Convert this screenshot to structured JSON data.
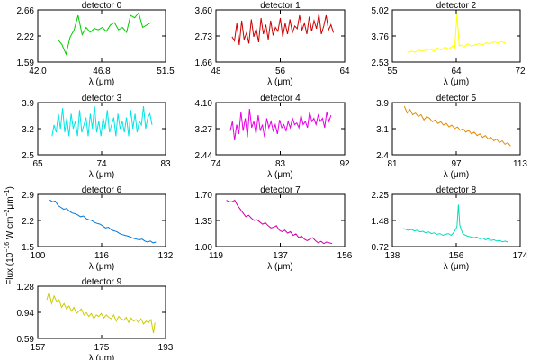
{
  "figure": {
    "ylabel_pre": "Flux (10",
    "ylabel_exp1": "−16",
    "ylabel_mid": " W cm",
    "ylabel_exp2": "−2",
    "ylabel_mid2": "μm",
    "ylabel_exp3": "−1",
    "ylabel_post": ")"
  },
  "chart_data": [
    {
      "type": "line",
      "title": "detector 0",
      "xlabel": "λ (μm)",
      "color": "#00cc00",
      "xlim": [
        42.0,
        51.5
      ],
      "ylim": [
        1.59,
        2.66
      ],
      "xticks": [
        "42.0",
        "46.8",
        "51.5"
      ],
      "yticks": [
        "1.59",
        "2.22",
        "2.66"
      ],
      "series": [
        {
          "x": [
            43.5,
            43.8,
            44.1,
            44.4,
            44.7,
            45.0,
            45.3,
            45.6,
            45.9,
            46.2,
            46.5,
            46.8,
            47.1,
            47.4,
            47.7,
            48.0,
            48.3,
            48.6,
            48.9,
            49.2,
            49.5,
            49.8,
            50.1,
            50.4
          ],
          "y": [
            2.05,
            1.95,
            1.75,
            2.1,
            2.25,
            2.55,
            2.15,
            2.3,
            2.2,
            2.28,
            2.25,
            2.3,
            2.22,
            2.35,
            2.4,
            2.25,
            2.3,
            2.2,
            2.55,
            2.5,
            2.6,
            2.3,
            2.35,
            2.4
          ]
        }
      ]
    },
    {
      "type": "line",
      "title": "detector 1",
      "xlabel": "λ (μm)",
      "color": "#cc0000",
      "xlim": [
        48,
        64
      ],
      "ylim": [
        1.66,
        3.6
      ],
      "xticks": [
        "48",
        "56",
        "64"
      ],
      "yticks": [
        "1.66",
        "2.73",
        "3.60"
      ],
      "series": [
        {
          "x": [
            50.0,
            50.3,
            50.6,
            50.9,
            51.2,
            51.5,
            51.8,
            52.1,
            52.4,
            52.7,
            53.0,
            53.3,
            53.6,
            53.9,
            54.2,
            54.5,
            54.8,
            55.1,
            55.4,
            55.7,
            56.0,
            56.3,
            56.6,
            56.9,
            57.2,
            57.5,
            57.8,
            58.1,
            58.4,
            58.7,
            59.0,
            59.3,
            59.6,
            59.9,
            60.2,
            60.5,
            60.8,
            61.1,
            61.4,
            61.7,
            62.0,
            62.3,
            62.6
          ],
          "y": [
            2.6,
            2.45,
            3.1,
            2.3,
            3.2,
            2.5,
            2.75,
            2.35,
            3.25,
            2.6,
            2.9,
            2.4,
            3.3,
            2.7,
            3.05,
            2.5,
            3.2,
            2.65,
            2.95,
            2.8,
            3.3,
            2.6,
            3.1,
            2.7,
            3.25,
            2.75,
            3.0,
            2.9,
            3.4,
            2.85,
            3.1,
            2.7,
            3.35,
            2.8,
            3.2,
            2.9,
            3.45,
            2.7,
            3.0,
            3.4,
            2.85,
            3.05,
            2.75
          ]
        }
      ]
    },
    {
      "type": "line",
      "title": "detector 2",
      "xlabel": "λ (μm)",
      "color": "#ffff00",
      "xlim": [
        55,
        72
      ],
      "ylim": [
        2.53,
        5.02
      ],
      "xticks": [
        "55",
        "64",
        "72"
      ],
      "yticks": [
        "2.53",
        "3.76",
        "5.02"
      ],
      "series": [
        {
          "x": [
            57.0,
            57.5,
            58.0,
            58.5,
            59.0,
            59.5,
            60.0,
            60.5,
            61.0,
            61.5,
            62.0,
            62.5,
            63.0,
            63.3,
            63.6,
            63.9,
            64.2,
            64.5,
            65.0,
            65.5,
            66.0,
            66.5,
            67.0,
            67.5,
            68.0,
            68.5,
            69.0,
            69.5,
            70.0
          ],
          "y": [
            3.0,
            3.05,
            3.0,
            3.1,
            3.05,
            3.1,
            3.15,
            3.05,
            3.2,
            3.1,
            3.25,
            3.15,
            3.3,
            3.2,
            4.8,
            3.3,
            3.35,
            3.25,
            3.4,
            3.3,
            3.35,
            3.4,
            3.35,
            3.45,
            3.4,
            3.5,
            3.45,
            3.5,
            3.45
          ]
        }
      ]
    },
    {
      "type": "line",
      "title": "detector 3",
      "xlabel": "λ (μm)",
      "color": "#00e5e5",
      "xlim": [
        65,
        83
      ],
      "ylim": [
        2.5,
        3.9
      ],
      "xticks": [
        "65",
        "74",
        "83"
      ],
      "yticks": [
        "2.5",
        "3.2",
        "3.9"
      ],
      "series": [
        {
          "x": [
            67.0,
            67.3,
            67.6,
            67.9,
            68.2,
            68.5,
            68.8,
            69.1,
            69.4,
            69.7,
            70.0,
            70.3,
            70.6,
            70.9,
            71.2,
            71.5,
            71.8,
            72.1,
            72.4,
            72.7,
            73.0,
            73.3,
            73.6,
            73.9,
            74.2,
            74.5,
            74.8,
            75.1,
            75.4,
            75.7,
            76.0,
            76.3,
            76.6,
            76.9,
            77.2,
            77.5,
            77.8,
            78.1,
            78.4,
            78.7,
            79.0,
            79.3,
            79.6,
            79.9,
            80.2,
            80.5,
            80.8,
            81.1
          ],
          "y": [
            3.0,
            3.3,
            3.1,
            3.6,
            3.2,
            3.75,
            3.1,
            3.5,
            3.0,
            3.6,
            3.2,
            3.4,
            3.0,
            3.7,
            3.1,
            3.3,
            3.5,
            3.0,
            3.6,
            3.2,
            3.8,
            3.1,
            3.4,
            3.0,
            3.5,
            3.2,
            3.7,
            3.1,
            3.3,
            3.5,
            3.0,
            3.6,
            3.2,
            3.4,
            3.1,
            3.5,
            3.0,
            3.7,
            3.2,
            3.6,
            3.1,
            3.4,
            3.3,
            3.8,
            3.2,
            3.5,
            3.6,
            3.3
          ]
        }
      ]
    },
    {
      "type": "line",
      "title": "detector 4",
      "xlabel": "λ (μm)",
      "color": "#e500e5",
      "xlim": [
        74,
        92
      ],
      "ylim": [
        2.44,
        4.1
      ],
      "xticks": [
        "74",
        "83",
        "92"
      ],
      "yticks": [
        "2.44",
        "3.27",
        "4.10"
      ],
      "series": [
        {
          "x": [
            76.0,
            76.3,
            76.6,
            76.9,
            77.2,
            77.5,
            77.8,
            78.1,
            78.4,
            78.7,
            79.0,
            79.3,
            79.6,
            79.9,
            80.2,
            80.5,
            80.8,
            81.1,
            81.4,
            81.7,
            82.0,
            82.3,
            82.6,
            82.9,
            83.2,
            83.5,
            83.8,
            84.1,
            84.4,
            84.7,
            85.0,
            85.3,
            85.6,
            85.9,
            86.2,
            86.5,
            86.8,
            87.1,
            87.4,
            87.7,
            88.0,
            88.3,
            88.6,
            88.9,
            89.2,
            89.5,
            89.8,
            90.1
          ],
          "y": [
            3.2,
            3.5,
            2.9,
            3.4,
            3.1,
            3.8,
            3.2,
            3.6,
            3.0,
            3.9,
            3.3,
            3.5,
            3.1,
            3.7,
            3.2,
            3.4,
            3.0,
            3.6,
            3.3,
            3.5,
            3.2,
            3.4,
            3.1,
            3.55,
            3.3,
            3.4,
            3.2,
            3.5,
            3.3,
            3.6,
            3.4,
            3.45,
            3.3,
            3.7,
            3.4,
            3.5,
            3.3,
            3.8,
            3.5,
            3.6,
            3.4,
            3.7,
            3.5,
            3.6,
            3.3,
            3.8,
            3.5,
            3.7
          ]
        }
      ]
    },
    {
      "type": "line",
      "title": "detector 5",
      "xlabel": "λ (μm)",
      "color": "#e58a00",
      "xlim": [
        81,
        113
      ],
      "ylim": [
        2.4,
        3.9
      ],
      "xticks": [
        "81",
        "97",
        "113"
      ],
      "yticks": [
        "2.4",
        "3.1",
        "3.9"
      ],
      "series": [
        {
          "x": [
            84.0,
            84.7,
            85.4,
            86.1,
            86.8,
            87.5,
            88.2,
            88.9,
            89.6,
            90.3,
            91.0,
            91.7,
            92.4,
            93.1,
            93.8,
            94.5,
            95.2,
            95.9,
            96.6,
            97.3,
            98.0,
            98.7,
            99.4,
            100.1,
            100.8,
            101.5,
            102.2,
            102.9,
            103.6,
            104.3,
            105.0,
            105.7,
            106.4,
            107.1,
            107.8,
            108.5,
            109.2,
            109.9,
            110.6
          ],
          "y": [
            3.8,
            3.6,
            3.7,
            3.55,
            3.6,
            3.5,
            3.55,
            3.4,
            3.5,
            3.45,
            3.35,
            3.4,
            3.3,
            3.35,
            3.25,
            3.3,
            3.2,
            3.25,
            3.15,
            3.2,
            3.1,
            3.15,
            3.05,
            3.1,
            3.0,
            3.05,
            2.95,
            3.0,
            2.9,
            2.95,
            2.85,
            2.9,
            2.8,
            2.85,
            2.75,
            2.8,
            2.7,
            2.75,
            2.65
          ]
        }
      ]
    },
    {
      "type": "line",
      "title": "detector 6",
      "xlabel": "λ (μm)",
      "color": "#0077dd",
      "xlim": [
        100,
        132
      ],
      "ylim": [
        1.5,
        2.9
      ],
      "xticks": [
        "100",
        "116",
        "132"
      ],
      "yticks": [
        "1.5",
        "2.2",
        "2.9"
      ],
      "series": [
        {
          "x": [
            103.0,
            103.7,
            104.4,
            105.1,
            105.8,
            106.5,
            107.2,
            107.9,
            108.6,
            109.3,
            110.0,
            110.7,
            111.4,
            112.1,
            112.8,
            113.5,
            114.2,
            114.9,
            115.6,
            116.3,
            117.0,
            117.7,
            118.4,
            119.1,
            119.8,
            120.5,
            121.2,
            121.9,
            122.6,
            123.3,
            124.0,
            124.7,
            125.4,
            126.1,
            126.8,
            127.5,
            128.2,
            128.9,
            129.6
          ],
          "y": [
            2.75,
            2.7,
            2.72,
            2.6,
            2.55,
            2.5,
            2.52,
            2.45,
            2.4,
            2.38,
            2.35,
            2.3,
            2.32,
            2.25,
            2.22,
            2.2,
            2.15,
            2.12,
            2.1,
            2.05,
            2.0,
            2.02,
            1.95,
            1.92,
            1.9,
            1.85,
            1.82,
            1.8,
            1.78,
            1.75,
            1.72,
            1.7,
            1.68,
            1.7,
            1.65,
            1.62,
            1.65,
            1.6,
            1.62
          ]
        }
      ]
    },
    {
      "type": "line",
      "title": "detector 7",
      "xlabel": "λ (μm)",
      "color": "#cc00aa",
      "xlim": [
        119,
        156
      ],
      "ylim": [
        1.0,
        1.7
      ],
      "xticks": [
        "119",
        "137",
        "156"
      ],
      "yticks": [
        "1.00",
        "1.35",
        "1.70"
      ],
      "series": [
        {
          "x": [
            122.0,
            122.8,
            123.6,
            124.4,
            125.2,
            126.0,
            126.8,
            127.6,
            128.4,
            129.2,
            130.0,
            130.8,
            131.6,
            132.4,
            133.2,
            134.0,
            134.8,
            135.6,
            136.4,
            137.2,
            138.0,
            138.8,
            139.6,
            140.4,
            141.2,
            142.0,
            142.8,
            143.6,
            144.4,
            145.2,
            146.0,
            146.8,
            147.6,
            148.4,
            149.2,
            150.0,
            150.8,
            151.6,
            152.4
          ],
          "y": [
            1.62,
            1.6,
            1.6,
            1.62,
            1.55,
            1.5,
            1.45,
            1.4,
            1.42,
            1.38,
            1.35,
            1.36,
            1.33,
            1.3,
            1.32,
            1.28,
            1.25,
            1.26,
            1.28,
            1.22,
            1.2,
            1.22,
            1.18,
            1.2,
            1.15,
            1.17,
            1.12,
            1.14,
            1.1,
            1.08,
            1.1,
            1.12,
            1.08,
            1.05,
            1.07,
            1.04,
            1.06,
            1.05,
            1.04
          ]
        }
      ]
    },
    {
      "type": "line",
      "title": "detector 8",
      "xlabel": "λ (μm)",
      "color": "#00ddbb",
      "xlim": [
        138,
        174
      ],
      "ylim": [
        0.72,
        2.25
      ],
      "xticks": [
        "138",
        "156",
        "174"
      ],
      "yticks": [
        "0.72",
        "1.48",
        "2.25"
      ],
      "series": [
        {
          "x": [
            141.0,
            141.8,
            142.6,
            143.4,
            144.2,
            145.0,
            145.8,
            146.6,
            147.4,
            148.2,
            149.0,
            149.8,
            150.6,
            151.4,
            152.2,
            153.0,
            153.8,
            154.6,
            155.4,
            156.2,
            156.6,
            157.0,
            157.8,
            158.6,
            159.4,
            160.2,
            161.0,
            161.8,
            162.6,
            163.4,
            164.2,
            165.0,
            165.8,
            166.6,
            167.4,
            168.2,
            169.0,
            169.8,
            170.6
          ],
          "y": [
            1.25,
            1.22,
            1.2,
            1.22,
            1.18,
            1.2,
            1.15,
            1.17,
            1.12,
            1.15,
            1.1,
            1.12,
            1.08,
            1.1,
            1.05,
            1.08,
            1.1,
            1.05,
            1.15,
            1.3,
            1.95,
            1.35,
            1.1,
            1.05,
            1.02,
            1.0,
            0.98,
            1.0,
            0.95,
            0.97,
            0.92,
            0.95,
            0.9,
            0.92,
            0.88,
            0.9,
            0.86,
            0.88,
            0.85
          ]
        }
      ]
    },
    {
      "type": "line",
      "title": "detector 9",
      "xlabel": "λ (μm)",
      "color": "#cccc00",
      "xlim": [
        157,
        193
      ],
      "ylim": [
        0.59,
        1.28
      ],
      "xticks": [
        "157",
        "175",
        "193"
      ],
      "yticks": [
        "0.59",
        "0.94",
        "1.28"
      ],
      "series": [
        {
          "x": [
            159.5,
            160.2,
            160.9,
            161.6,
            162.3,
            163.0,
            163.7,
            164.4,
            165.1,
            165.8,
            166.5,
            167.2,
            167.9,
            168.6,
            169.3,
            170.0,
            170.7,
            171.4,
            172.1,
            172.8,
            173.5,
            174.2,
            174.9,
            175.6,
            176.3,
            177.0,
            177.7,
            178.4,
            179.1,
            179.8,
            180.5,
            181.2,
            181.9,
            182.6,
            183.3,
            184.0,
            184.7,
            185.4,
            186.1,
            186.8,
            187.5,
            188.2,
            188.9,
            189.6,
            190.0
          ],
          "y": [
            1.1,
            1.2,
            1.05,
            1.15,
            1.08,
            1.1,
            1.0,
            1.05,
            0.98,
            1.02,
            0.95,
            1.0,
            0.92,
            0.95,
            0.98,
            0.9,
            0.93,
            0.88,
            0.92,
            0.85,
            0.9,
            0.88,
            0.92,
            0.86,
            0.9,
            0.87,
            0.85,
            0.9,
            0.82,
            0.88,
            0.85,
            0.83,
            0.87,
            0.8,
            0.86,
            0.82,
            0.84,
            0.8,
            0.85,
            0.78,
            0.82,
            0.8,
            0.84,
            0.66,
            0.8
          ]
        }
      ]
    }
  ]
}
